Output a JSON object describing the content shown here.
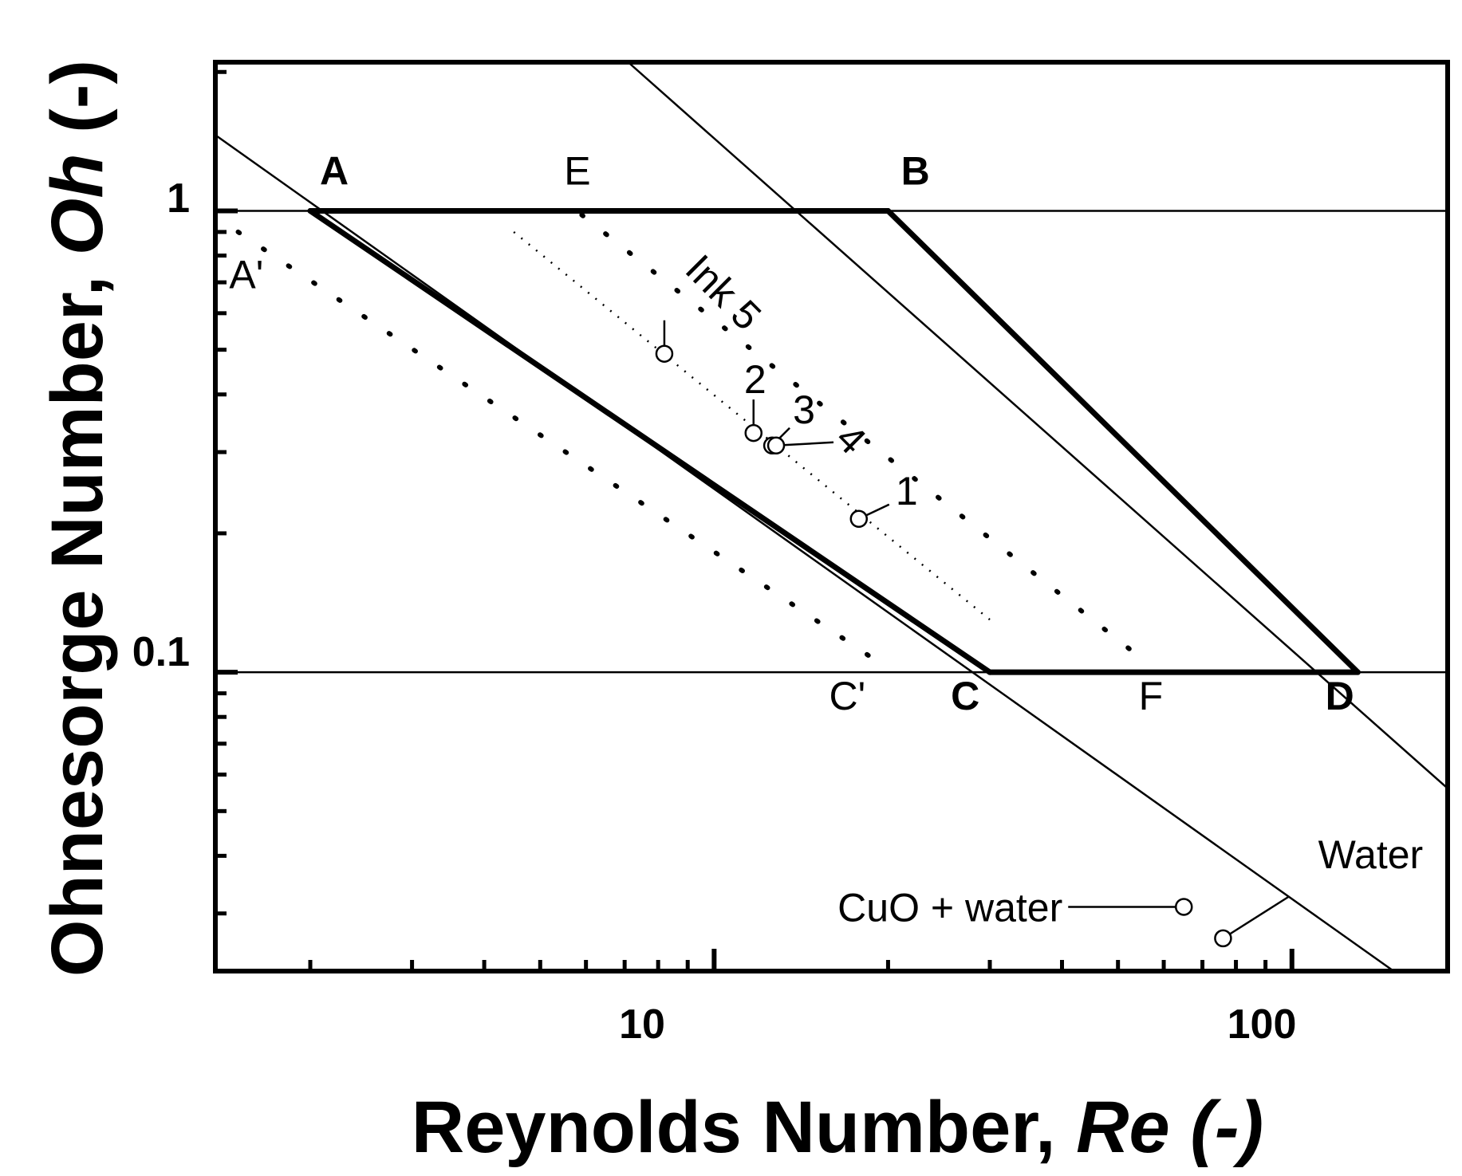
{
  "chart_data": {
    "type": "scatter",
    "title": "",
    "xlabel": "Reynolds Number, ",
    "xlabel_italic": "Re",
    "xlabel_suffix": " (-)",
    "ylabel": "Ohnesorge Number, ",
    "ylabel_italic": "Oh",
    "ylabel_suffix": " (-)",
    "xscale": "log",
    "yscale": "log",
    "xlim": [
      1.37,
      186
    ],
    "ylim": [
      0.0225,
      2.1
    ],
    "x_ticks": [
      {
        "value": 10,
        "label": "10"
      },
      {
        "value": 100,
        "label": "100"
      }
    ],
    "y_ticks": [
      {
        "value": 0.1,
        "label": "0.1"
      },
      {
        "value": 1,
        "label": "1"
      }
    ],
    "grid": false,
    "reference_lines": [
      {
        "name": "Oh = 1",
        "points": [
          [
            1.37,
            1
          ],
          [
            186,
            1
          ]
        ],
        "style": "thin"
      },
      {
        "name": "Oh = 0.1",
        "points": [
          [
            1.37,
            0.1
          ],
          [
            186,
            0.1
          ]
        ],
        "style": "thin"
      },
      {
        "name": "A-C line",
        "points": [
          [
            1.37,
            1.46
          ],
          [
            150,
            0.0225
          ]
        ],
        "style": "thin"
      },
      {
        "name": "B-D line",
        "points": [
          [
            7.1,
            2.1
          ],
          [
            186,
            0.056
          ]
        ],
        "style": "thin"
      },
      {
        "name": "A-B",
        "points": [
          [
            2,
            1
          ],
          [
            20,
            1
          ]
        ],
        "style": "thick"
      },
      {
        "name": "C-D",
        "points": [
          [
            30,
            0.1
          ],
          [
            130,
            0.1
          ]
        ],
        "style": "thick"
      },
      {
        "name": "A-C",
        "points": [
          [
            2,
            1
          ],
          [
            30,
            0.1
          ]
        ],
        "style": "thick"
      },
      {
        "name": "B-D",
        "points": [
          [
            20,
            1
          ],
          [
            130,
            0.1
          ]
        ],
        "style": "thick"
      },
      {
        "name": "A'-C'",
        "points": [
          [
            1.5,
            0.9
          ],
          [
            19.5,
            0.104
          ]
        ],
        "style": "dotted"
      },
      {
        "name": "E-F",
        "points": [
          [
            5.9,
            0.98
          ],
          [
            56,
            0.105
          ]
        ],
        "style": "dotted"
      },
      {
        "name": "Ink trend",
        "points": [
          [
            4.5,
            0.9
          ],
          [
            30,
            0.13
          ]
        ],
        "style": "fine-dotted"
      }
    ],
    "region_labels": [
      {
        "label": "A",
        "x": 2.2,
        "y": 1.14,
        "bold": true
      },
      {
        "label": "E",
        "x": 5.8,
        "y": 1.14,
        "bold": false
      },
      {
        "label": "B",
        "x": 22.3,
        "y": 1.14,
        "bold": true
      },
      {
        "label": "A'",
        "x": 1.55,
        "y": 0.68,
        "bold": false
      },
      {
        "label": "C'",
        "x": 17,
        "y": 0.083,
        "bold": false
      },
      {
        "label": "C",
        "x": 27.2,
        "y": 0.083,
        "bold": true
      },
      {
        "label": "F",
        "x": 57,
        "y": 0.083,
        "bold": false
      },
      {
        "label": "D",
        "x": 121,
        "y": 0.083,
        "bold": true
      }
    ],
    "series": [
      {
        "name": "",
        "points": [
          {
            "label": "Ink 5",
            "x": 8.2,
            "y": 0.49
          },
          {
            "label": "2",
            "x": 11.7,
            "y": 0.33
          },
          {
            "label": "3",
            "x": 12.6,
            "y": 0.31
          },
          {
            "label": "4",
            "x": 12.8,
            "y": 0.31
          },
          {
            "label": "1",
            "x": 17.8,
            "y": 0.215
          },
          {
            "label": "CuO + water",
            "x": 65,
            "y": 0.031
          },
          {
            "label": "Water",
            "x": 76,
            "y": 0.0265
          }
        ]
      }
    ]
  }
}
